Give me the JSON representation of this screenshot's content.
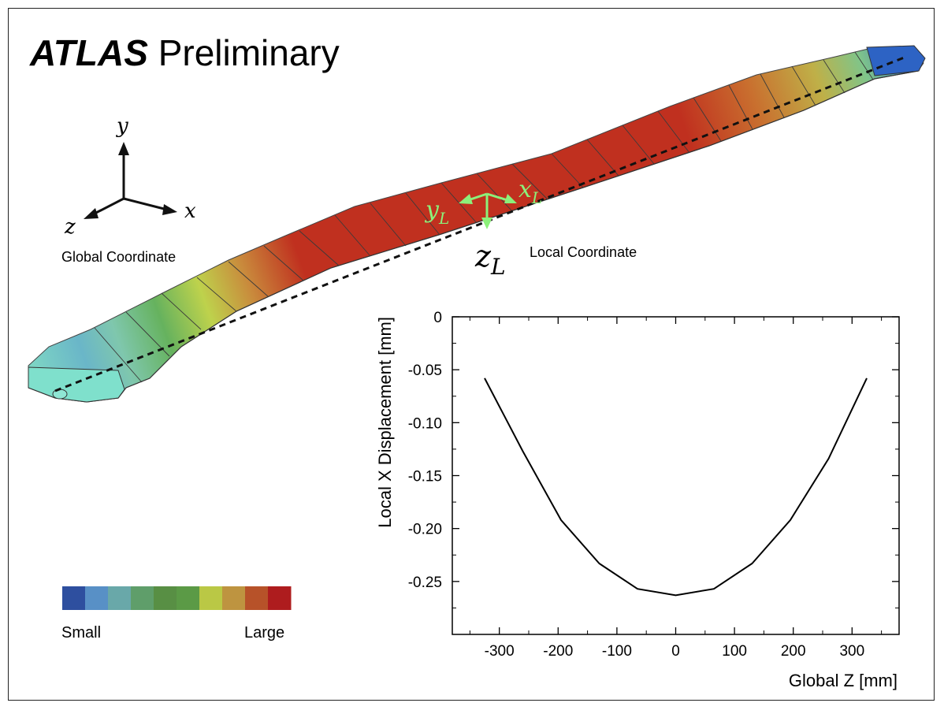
{
  "title": {
    "bold": "ATLAS",
    "rest": "Preliminary"
  },
  "global_axes": {
    "y": "y",
    "x": "x",
    "z": "z",
    "caption": "Global Coordinate"
  },
  "local_axes": {
    "x": "x",
    "y": "y",
    "z": "z",
    "sub": "L",
    "caption": "Local Coordinate",
    "color": "#8cf07a"
  },
  "colorbar": {
    "colors": [
      "#2e4f9f",
      "#5890c6",
      "#69a8a9",
      "#5f9e6a",
      "#588f44",
      "#5b9a46",
      "#bac845",
      "#be9440",
      "#b75229",
      "#ae1c1e"
    ],
    "min_label": "Small",
    "max_label": "Large"
  },
  "chart_data": {
    "type": "line",
    "xlabel": "Global Z [mm]",
    "ylabel": "Local X Displacement [mm]",
    "xlim": [
      -380,
      380
    ],
    "ylim": [
      -0.3,
      0
    ],
    "xticks": [
      -300,
      -200,
      -100,
      0,
      100,
      200,
      300
    ],
    "xtick_labels": [
      "-300",
      "-200",
      "-100",
      "0",
      "100",
      "200",
      "300"
    ],
    "yticks": [
      0,
      -0.05,
      -0.1,
      -0.15,
      -0.2,
      -0.25
    ],
    "ytick_labels": [
      "0",
      "-0.05",
      "-0.10",
      "-0.15",
      "-0.20",
      "-0.25"
    ],
    "series": [
      {
        "x": [
          -325,
          -260,
          -195,
          -130,
          -65,
          0,
          65,
          130,
          195,
          260,
          325
        ],
        "values": [
          -0.058,
          -0.127,
          -0.192,
          -0.233,
          -0.257,
          -0.263,
          -0.257,
          -0.233,
          -0.192,
          -0.134,
          -0.058
        ]
      }
    ],
    "grid": false,
    "legend": "none"
  }
}
